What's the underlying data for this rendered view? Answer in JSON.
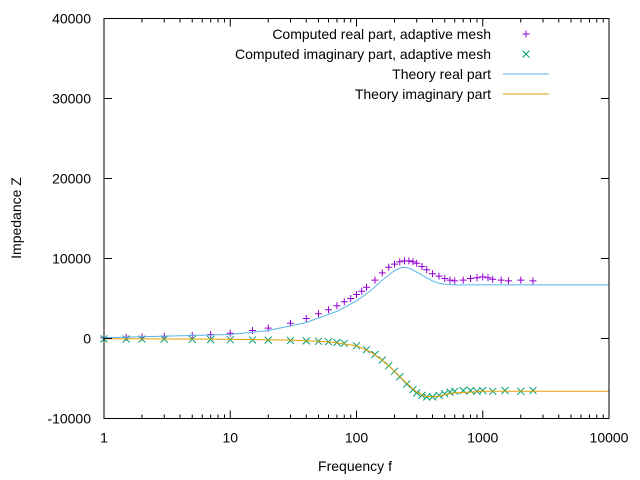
{
  "chart_data": {
    "type": "scatter",
    "xlabel": "Frequency f",
    "ylabel": "Impedance Z",
    "x_scale": "log",
    "xlim": [
      1,
      10000
    ],
    "ylim": [
      -10000,
      40000
    ],
    "x_ticks": [
      1,
      10,
      100,
      1000,
      10000
    ],
    "x_tick_labels": [
      "1",
      "10",
      "100",
      "1000",
      "10000"
    ],
    "y_ticks": [
      -10000,
      0,
      10000,
      20000,
      30000,
      40000
    ],
    "y_tick_labels": [
      "-10000",
      "0",
      "10000",
      "20000",
      "30000",
      "40000"
    ],
    "grid": false,
    "legend_position": "top-right",
    "series": [
      {
        "name": "Computed real part, adaptive mesh",
        "kind": "points",
        "marker": "plus",
        "color": "#9400d3",
        "x": [
          1,
          1.5,
          2,
          3,
          5,
          7,
          10,
          15,
          20,
          30,
          40,
          50,
          60,
          70,
          80,
          90,
          100,
          110,
          120,
          140,
          160,
          180,
          200,
          220,
          240,
          260,
          280,
          300,
          330,
          360,
          400,
          450,
          500,
          550,
          600,
          700,
          800,
          900,
          1000,
          1100,
          1200,
          1400,
          1600,
          2000,
          2500
        ],
        "y": [
          100,
          150,
          200,
          280,
          390,
          500,
          650,
          1000,
          1300,
          1900,
          2500,
          3100,
          3600,
          4100,
          4600,
          5000,
          5500,
          5900,
          6400,
          7300,
          8200,
          8900,
          9300,
          9600,
          9700,
          9700,
          9600,
          9400,
          9000,
          8600,
          8100,
          7800,
          7500,
          7300,
          7200,
          7300,
          7500,
          7600,
          7700,
          7600,
          7400,
          7300,
          7200,
          7300,
          7200
        ]
      },
      {
        "name": "Computed imaginary part, adaptive mesh",
        "kind": "points",
        "marker": "cross",
        "color": "#009e73",
        "x": [
          1,
          1.5,
          2,
          3,
          5,
          7,
          10,
          15,
          20,
          30,
          40,
          50,
          60,
          70,
          80,
          100,
          120,
          140,
          160,
          180,
          200,
          220,
          250,
          280,
          300,
          330,
          360,
          400,
          450,
          500,
          550,
          600,
          700,
          800,
          900,
          1000,
          1200,
          1500,
          2000,
          2500
        ],
        "y": [
          -50,
          -60,
          -70,
          -80,
          -100,
          -120,
          -150,
          -180,
          -200,
          -250,
          -300,
          -350,
          -400,
          -500,
          -600,
          -900,
          -1400,
          -2000,
          -2700,
          -3400,
          -4100,
          -4800,
          -5700,
          -6400,
          -6800,
          -7100,
          -7300,
          -7300,
          -7100,
          -6900,
          -6700,
          -6600,
          -6500,
          -6500,
          -6600,
          -6500,
          -6600,
          -6500,
          -6600,
          -6500
        ]
      },
      {
        "name": "Theory real part",
        "kind": "line",
        "color": "#56b4e9",
        "x": [
          1,
          10,
          20,
          40,
          70,
          100,
          130,
          160,
          200,
          230,
          260,
          300,
          350,
          400,
          450,
          500,
          600,
          800,
          1000,
          2000,
          5000,
          10000
        ],
        "y": [
          100,
          500,
          1000,
          2000,
          3400,
          4700,
          6000,
          7300,
          8500,
          8900,
          8800,
          8300,
          7700,
          7200,
          6900,
          6800,
          6700,
          6700,
          6700,
          6700,
          6700,
          6700
        ]
      },
      {
        "name": "Theory imaginary part",
        "kind": "line",
        "color": "#e69f00",
        "x": [
          1,
          10,
          30,
          60,
          100,
          130,
          160,
          200,
          250,
          300,
          350,
          400,
          450,
          500,
          600,
          800,
          1000,
          2000,
          5000,
          10000
        ],
        "y": [
          -30,
          -100,
          -200,
          -400,
          -900,
          -1700,
          -2700,
          -4100,
          -5600,
          -6700,
          -7200,
          -7300,
          -7200,
          -7000,
          -6800,
          -6700,
          -6600,
          -6600,
          -6600,
          -6600
        ]
      }
    ]
  }
}
